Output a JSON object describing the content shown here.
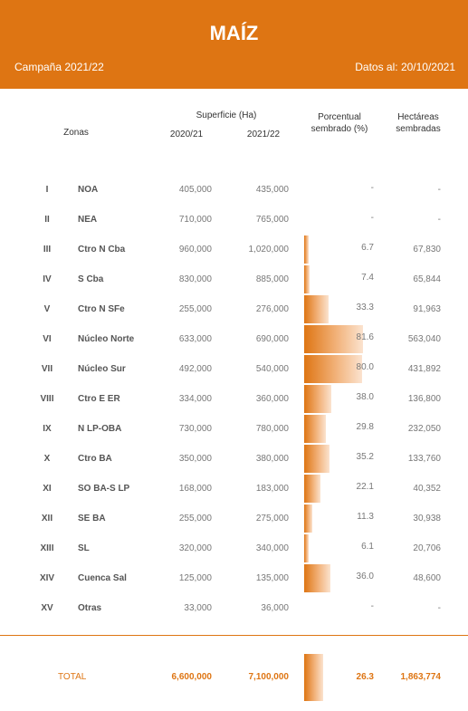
{
  "header": {
    "title": "MAÍZ",
    "campaign": "Campaña 2021/22",
    "datos": "Datos al: 20/10/2021",
    "color": "#de7513"
  },
  "columns": {
    "zonas": "Zonas",
    "superficie": "Superficie (Ha)",
    "y2021": "2020/21",
    "y2122": "2021/22",
    "porcentual_line1": "Porcentual",
    "porcentual_line2": "sembrado (%)",
    "hect_line1": "Hectáreas",
    "hect_line2": "sembradas"
  },
  "rows": [
    {
      "roman": "I",
      "zona": "NOA",
      "s2021": "405,000",
      "s2122": "435,000",
      "pct": "-",
      "pct_value": 0,
      "hect": "-"
    },
    {
      "roman": "II",
      "zona": "NEA",
      "s2021": "710,000",
      "s2122": "765,000",
      "pct": "-",
      "pct_value": 0,
      "hect": "-"
    },
    {
      "roman": "III",
      "zona": "Ctro N Cba",
      "s2021": "960,000",
      "s2122": "1,020,000",
      "pct": "6.7",
      "pct_value": 6.7,
      "hect": "67,830"
    },
    {
      "roman": "IV",
      "zona": "S Cba",
      "s2021": "830,000",
      "s2122": "885,000",
      "pct": "7.4",
      "pct_value": 7.4,
      "hect": "65,844"
    },
    {
      "roman": "V",
      "zona": "Ctro N SFe",
      "s2021": "255,000",
      "s2122": "276,000",
      "pct": "33.3",
      "pct_value": 33.3,
      "hect": "91,963"
    },
    {
      "roman": "VI",
      "zona": "Núcleo Norte",
      "s2021": "633,000",
      "s2122": "690,000",
      "pct": "81.6",
      "pct_value": 81.6,
      "hect": "563,040"
    },
    {
      "roman": "VII",
      "zona": "Núcleo Sur",
      "s2021": "492,000",
      "s2122": "540,000",
      "pct": "80.0",
      "pct_value": 80.0,
      "hect": "431,892"
    },
    {
      "roman": "VIII",
      "zona": "Ctro E ER",
      "s2021": "334,000",
      "s2122": "360,000",
      "pct": "38.0",
      "pct_value": 38.0,
      "hect": "136,800"
    },
    {
      "roman": "IX",
      "zona": "N LP-OBA",
      "s2021": "730,000",
      "s2122": "780,000",
      "pct": "29.8",
      "pct_value": 29.8,
      "hect": "232,050"
    },
    {
      "roman": "X",
      "zona": "Ctro BA",
      "s2021": "350,000",
      "s2122": "380,000",
      "pct": "35.2",
      "pct_value": 35.2,
      "hect": "133,760"
    },
    {
      "roman": "XI",
      "zona": "SO BA-S LP",
      "s2021": "168,000",
      "s2122": "183,000",
      "pct": "22.1",
      "pct_value": 22.1,
      "hect": "40,352"
    },
    {
      "roman": "XII",
      "zona": "SE BA",
      "s2021": "255,000",
      "s2122": "275,000",
      "pct": "11.3",
      "pct_value": 11.3,
      "hect": "30,938"
    },
    {
      "roman": "XIII",
      "zona": "SL",
      "s2021": "320,000",
      "s2122": "340,000",
      "pct": "6.1",
      "pct_value": 6.1,
      "hect": "20,706"
    },
    {
      "roman": "XIV",
      "zona": "Cuenca Sal",
      "s2021": "125,000",
      "s2122": "135,000",
      "pct": "36.0",
      "pct_value": 36.0,
      "hect": "48,600"
    },
    {
      "roman": "XV",
      "zona": "Otras",
      "s2021": "33,000",
      "s2122": "36,000",
      "pct": "-",
      "pct_value": 0,
      "hect": "-"
    }
  ],
  "total": {
    "label": "TOTAL",
    "s2021": "6,600,000",
    "s2122": "7,100,000",
    "pct": "26.3",
    "pct_value": 26.3,
    "hect": "1,863,774"
  }
}
